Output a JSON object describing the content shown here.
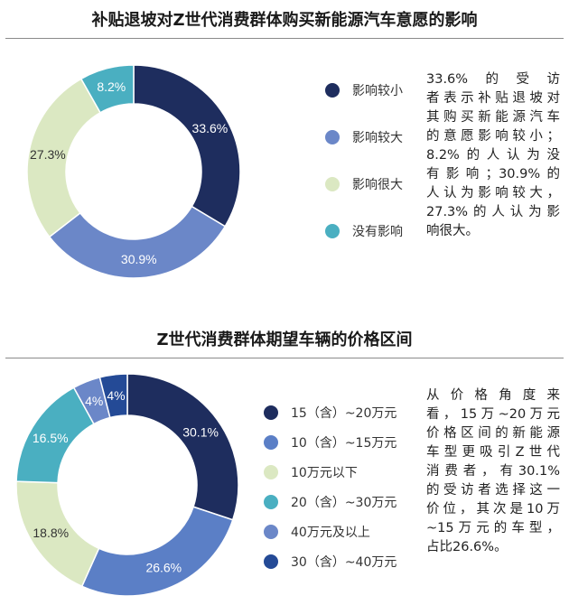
{
  "chart_data": [
    {
      "type": "pie",
      "title": "补贴退坡对Z世代消费群体购买新能源汽车意愿的影响",
      "categories": [
        "影响较小",
        "影响较大",
        "影响很大",
        "没有影响"
      ],
      "values": [
        33.6,
        30.9,
        27.3,
        8.2
      ],
      "value_labels": [
        "33.6%",
        "30.9%",
        "27.3%",
        "8.2%"
      ],
      "colors": [
        "#1e2d5e",
        "#6b87c8",
        "#dbe8c2",
        "#4aafc1"
      ],
      "label_colors": [
        "#ffffff",
        "#ffffff",
        "#333333",
        "#ffffff"
      ],
      "legend_position": "right",
      "note_lines": [
        "33.6%的受访",
        "者表示补贴退坡对",
        "其购买新能源汽车",
        "的意愿影响较小；",
        "8.2%的人认为没",
        "有影响；30.9%的",
        "人认为影响较大，",
        "27.3%的人认为影",
        "响很大。"
      ]
    },
    {
      "type": "pie",
      "title": "Z世代消费群体期望车辆的价格区间",
      "categories": [
        "15（含）~20万元",
        "10（含）~15万元",
        "10万元以下",
        "20（含）~30万元",
        "40万元及以上",
        "30（含）~40万元"
      ],
      "values": [
        30.1,
        26.6,
        18.8,
        16.5,
        4,
        4
      ],
      "value_labels": [
        "30.1%",
        "26.6%",
        "18.8%",
        "16.5%",
        "4%",
        "4%"
      ],
      "colors": [
        "#1e2d5e",
        "#5b7fc6",
        "#dbe8c2",
        "#4aafc1",
        "#6b87c8",
        "#244a96"
      ],
      "label_colors": [
        "#ffffff",
        "#ffffff",
        "#333333",
        "#ffffff",
        "#ffffff",
        "#ffffff"
      ],
      "legend_position": "right",
      "note_lines": [
        "从价格角度来",
        "看，15万~20万元",
        "价格区间的新能源",
        "车型更吸引Z世代",
        "消费者，有30.1%",
        "的受访者选择这一",
        "价位，其次是10万",
        "~15万元的车型，",
        "占比26.6%。"
      ]
    }
  ]
}
